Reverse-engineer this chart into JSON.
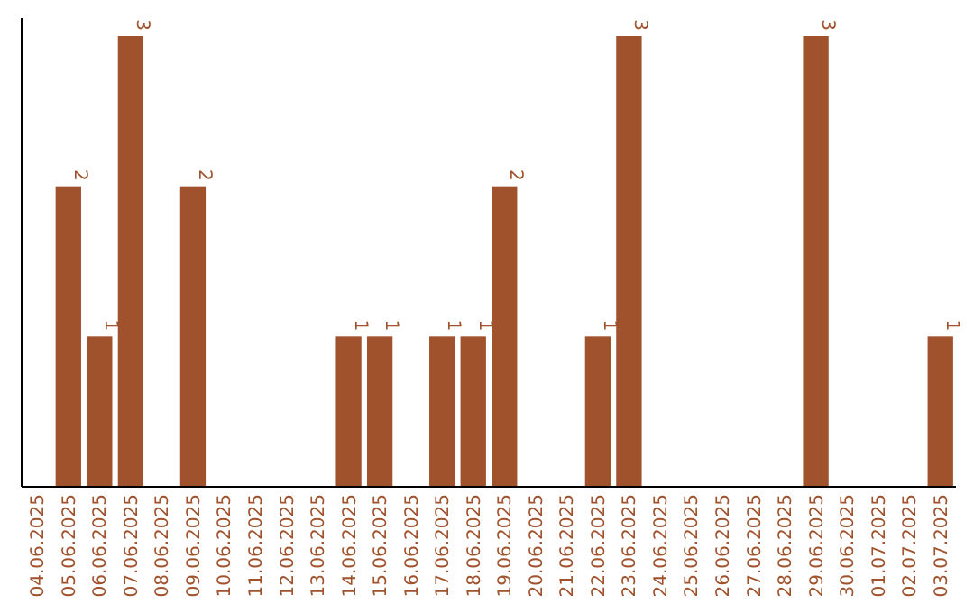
{
  "chart_data": {
    "type": "bar",
    "categories": [
      "04.06.2025",
      "05.06.2025",
      "06.06.2025",
      "07.06.2025",
      "08.06.2025",
      "09.06.2025",
      "10.06.2025",
      "11.06.2025",
      "12.06.2025",
      "13.06.2025",
      "14.06.2025",
      "15.06.2025",
      "16.06.2025",
      "17.06.2025",
      "18.06.2025",
      "19.06.2025",
      "20.06.2025",
      "21.06.2025",
      "22.06.2025",
      "23.06.2025",
      "24.06.2025",
      "25.06.2025",
      "26.06.2025",
      "27.06.2025",
      "28.06.2025",
      "29.06.2025",
      "30.06.2025",
      "01.07.2025",
      "02.07.2025",
      "03.07.2025"
    ],
    "values": [
      0,
      2,
      1,
      3,
      0,
      2,
      0,
      0,
      0,
      0,
      1,
      1,
      0,
      1,
      1,
      2,
      0,
      0,
      1,
      3,
      0,
      0,
      0,
      0,
      0,
      3,
      0,
      0,
      0,
      1
    ],
    "value_labels": [
      null,
      "2",
      "1",
      "3",
      null,
      "2",
      null,
      null,
      null,
      null,
      "1",
      "1",
      null,
      "1",
      "1",
      "2",
      null,
      null,
      "1",
      "3",
      null,
      null,
      null,
      null,
      null,
      "3",
      null,
      null,
      null,
      "1"
    ],
    "color": "#a0522d",
    "ylim": [
      0,
      3
    ],
    "tick_labels": "x"
  }
}
